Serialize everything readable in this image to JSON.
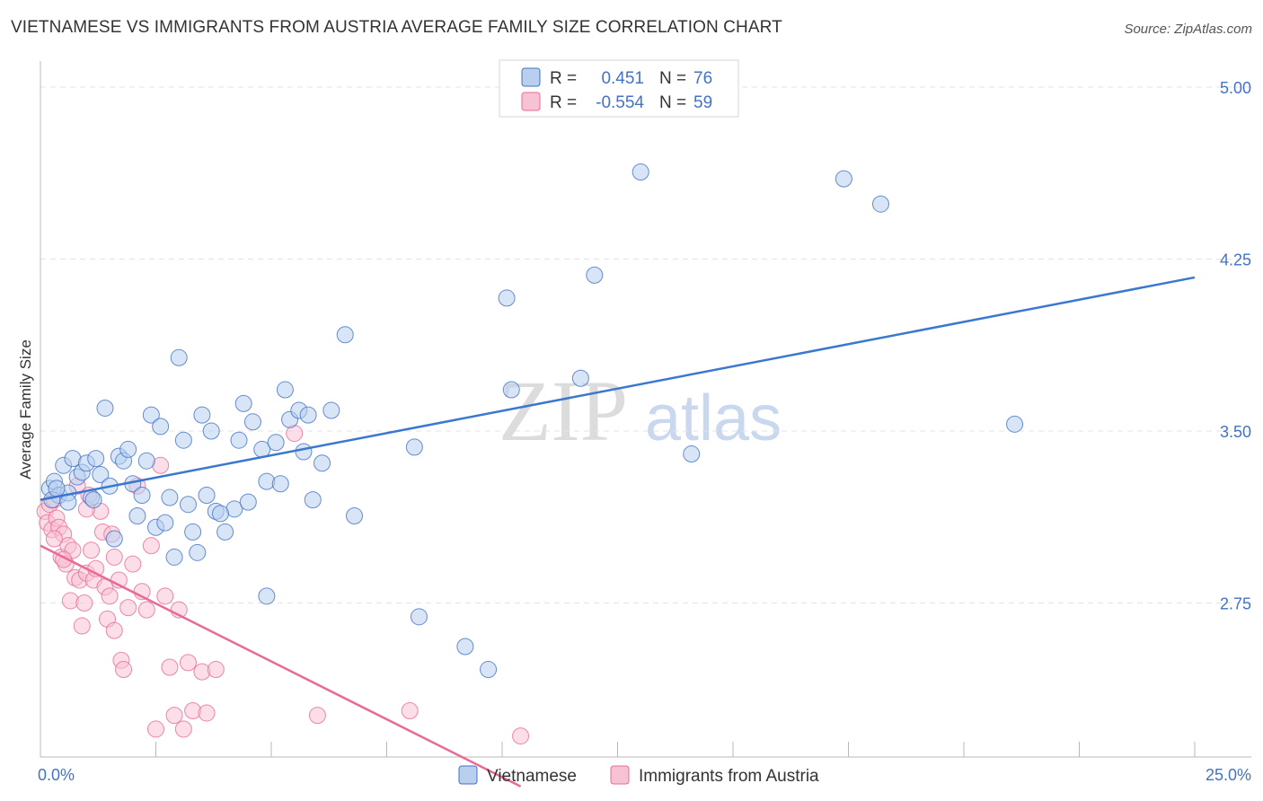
{
  "title": "VIETNAMESE VS IMMIGRANTS FROM AUSTRIA AVERAGE FAMILY SIZE CORRELATION CHART",
  "source": "Source: ZipAtlas.com",
  "colors": {
    "blue": "#4472c4",
    "blue_fill": "#b8cff0",
    "blue_line": "#3a78cf",
    "pink": "#e86a97",
    "pink_fill": "#f7c3d4",
    "pink_line": "#e86a97",
    "grid": "#e3e3e3",
    "axis": "#b8b8b8"
  },
  "legend": {
    "r_label": "R =",
    "n_label": "N =",
    "rows": [
      {
        "r": "0.451",
        "n": "76",
        "series": "Vietnamese"
      },
      {
        "r": "-0.554",
        "n": "59",
        "series": "Immigrants from Austria"
      }
    ]
  },
  "watermark": {
    "zip": "ZIP",
    "atlas": "atlas"
  },
  "chart_data": {
    "type": "scatter",
    "title": "VIETNAMESE VS IMMIGRANTS FROM AUSTRIA AVERAGE FAMILY SIZE CORRELATION CHART",
    "xlabel": "",
    "ylabel": "Average Family Size",
    "xlim": [
      0,
      25
    ],
    "ylim": [
      2.0,
      5.1
    ],
    "x_tick_labels": [
      "0.0%",
      "25.0%"
    ],
    "y_ticks": [
      2.75,
      3.5,
      4.25,
      5.0
    ],
    "y_tick_labels": [
      "2.75",
      "3.50",
      "4.25",
      "5.00"
    ],
    "grid": true,
    "series": [
      {
        "name": "Vietnamese",
        "color": "blue",
        "trend": {
          "x": [
            0.0,
            25.0
          ],
          "y": [
            3.2,
            4.17
          ]
        },
        "points": [
          [
            0.2,
            3.25
          ],
          [
            0.3,
            3.28
          ],
          [
            0.4,
            3.22
          ],
          [
            0.5,
            3.35
          ],
          [
            0.6,
            3.23
          ],
          [
            0.7,
            3.38
          ],
          [
            0.8,
            3.3
          ],
          [
            0.9,
            3.32
          ],
          [
            1.0,
            3.36
          ],
          [
            1.1,
            3.21
          ],
          [
            1.2,
            3.38
          ],
          [
            1.3,
            3.31
          ],
          [
            1.4,
            3.6
          ],
          [
            1.5,
            3.26
          ],
          [
            1.7,
            3.39
          ],
          [
            1.8,
            3.37
          ],
          [
            1.9,
            3.42
          ],
          [
            2.0,
            3.27
          ],
          [
            2.1,
            3.13
          ],
          [
            2.2,
            3.22
          ],
          [
            2.3,
            3.37
          ],
          [
            2.4,
            3.57
          ],
          [
            2.5,
            3.08
          ],
          [
            2.6,
            3.52
          ],
          [
            2.8,
            3.21
          ],
          [
            3.0,
            3.82
          ],
          [
            3.1,
            3.46
          ],
          [
            3.2,
            3.18
          ],
          [
            3.3,
            3.06
          ],
          [
            3.4,
            2.97
          ],
          [
            3.5,
            3.57
          ],
          [
            3.6,
            3.22
          ],
          [
            3.7,
            3.5
          ],
          [
            3.8,
            3.15
          ],
          [
            4.0,
            3.06
          ],
          [
            4.2,
            3.16
          ],
          [
            4.3,
            3.46
          ],
          [
            4.4,
            3.62
          ],
          [
            4.5,
            3.19
          ],
          [
            4.6,
            3.54
          ],
          [
            4.8,
            3.42
          ],
          [
            4.9,
            3.28
          ],
          [
            5.1,
            3.45
          ],
          [
            5.2,
            3.27
          ],
          [
            5.3,
            3.68
          ],
          [
            5.4,
            3.55
          ],
          [
            5.6,
            3.59
          ],
          [
            5.7,
            3.41
          ],
          [
            5.8,
            3.57
          ],
          [
            5.9,
            3.2
          ],
          [
            6.1,
            3.36
          ],
          [
            6.3,
            3.59
          ],
          [
            6.6,
            3.92
          ],
          [
            6.8,
            3.13
          ],
          [
            8.1,
            3.43
          ],
          [
            8.2,
            2.69
          ],
          [
            9.2,
            2.56
          ],
          [
            9.7,
            2.46
          ],
          [
            10.1,
            4.08
          ],
          [
            10.2,
            3.68
          ],
          [
            11.7,
            3.73
          ],
          [
            12.0,
            4.18
          ],
          [
            13.0,
            4.63
          ],
          [
            14.1,
            3.4
          ],
          [
            17.4,
            4.6
          ],
          [
            18.2,
            4.49
          ],
          [
            21.1,
            3.53
          ],
          [
            0.25,
            3.2
          ],
          [
            0.35,
            3.25
          ],
          [
            1.15,
            3.2
          ],
          [
            2.9,
            2.95
          ],
          [
            4.9,
            2.78
          ],
          [
            0.6,
            3.19
          ],
          [
            1.6,
            3.03
          ],
          [
            2.7,
            3.1
          ],
          [
            3.9,
            3.14
          ]
        ]
      },
      {
        "name": "Immigrants from Austria",
        "color": "pink",
        "trend": {
          "x": [
            0.0,
            10.4
          ],
          "y": [
            3.0,
            1.95
          ]
        },
        "points": [
          [
            0.1,
            3.15
          ],
          [
            0.15,
            3.1
          ],
          [
            0.2,
            3.18
          ],
          [
            0.25,
            3.07
          ],
          [
            0.3,
            3.2
          ],
          [
            0.35,
            3.12
          ],
          [
            0.4,
            3.08
          ],
          [
            0.45,
            2.95
          ],
          [
            0.5,
            3.05
          ],
          [
            0.55,
            2.92
          ],
          [
            0.6,
            3.0
          ],
          [
            0.65,
            2.76
          ],
          [
            0.7,
            2.98
          ],
          [
            0.75,
            2.86
          ],
          [
            0.8,
            3.26
          ],
          [
            0.85,
            2.85
          ],
          [
            0.9,
            2.65
          ],
          [
            0.95,
            2.75
          ],
          [
            1.0,
            2.88
          ],
          [
            1.05,
            3.22
          ],
          [
            1.1,
            2.98
          ],
          [
            1.15,
            2.85
          ],
          [
            1.2,
            2.9
          ],
          [
            1.3,
            3.15
          ],
          [
            1.35,
            3.06
          ],
          [
            1.4,
            2.82
          ],
          [
            1.45,
            2.68
          ],
          [
            1.5,
            2.78
          ],
          [
            1.55,
            3.05
          ],
          [
            1.6,
            2.95
          ],
          [
            1.7,
            2.85
          ],
          [
            1.75,
            2.5
          ],
          [
            1.8,
            2.46
          ],
          [
            1.9,
            2.73
          ],
          [
            2.0,
            2.92
          ],
          [
            2.1,
            3.26
          ],
          [
            2.2,
            2.8
          ],
          [
            2.3,
            2.72
          ],
          [
            2.4,
            3.0
          ],
          [
            2.5,
            2.2
          ],
          [
            2.6,
            3.35
          ],
          [
            2.7,
            2.78
          ],
          [
            2.8,
            2.47
          ],
          [
            2.9,
            2.26
          ],
          [
            3.0,
            2.72
          ],
          [
            3.1,
            2.2
          ],
          [
            3.2,
            2.49
          ],
          [
            3.3,
            2.28
          ],
          [
            3.5,
            2.45
          ],
          [
            3.6,
            2.27
          ],
          [
            5.5,
            3.49
          ],
          [
            6.0,
            2.26
          ],
          [
            8.0,
            2.28
          ],
          [
            10.4,
            2.17
          ],
          [
            1.0,
            3.16
          ],
          [
            0.5,
            2.94
          ],
          [
            1.6,
            2.63
          ],
          [
            3.8,
            2.46
          ],
          [
            0.3,
            3.03
          ]
        ]
      }
    ]
  }
}
